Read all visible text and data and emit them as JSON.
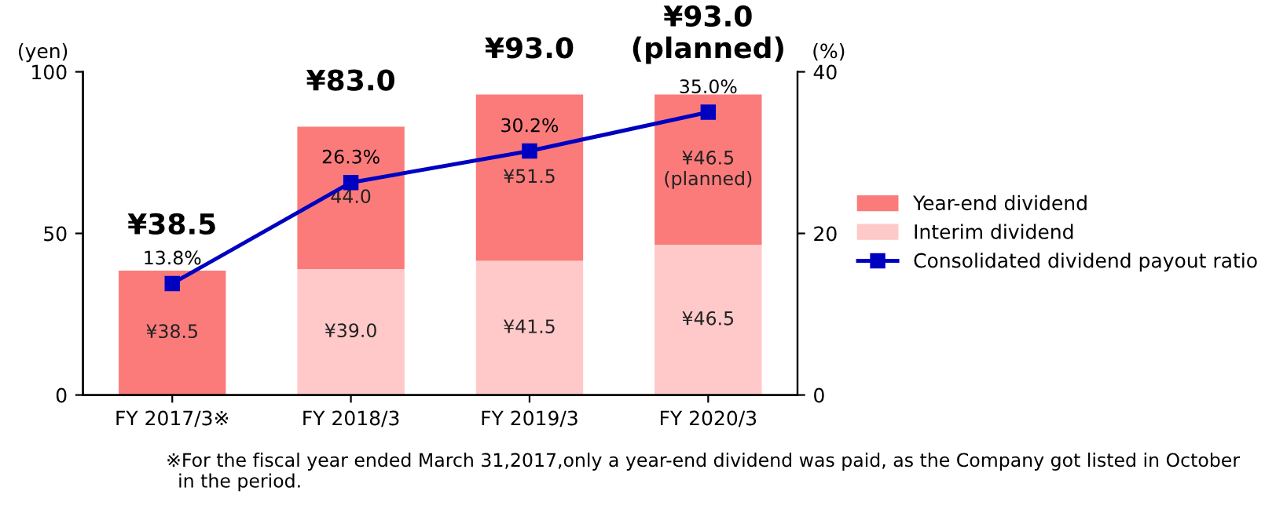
{
  "chart_data": {
    "type": "bar",
    "stacked": true,
    "categories": [
      "FY 2017/3※",
      "FY 2018/3",
      "FY 2019/3",
      "FY 2020/3"
    ],
    "ylabel": "(yen)",
    "y2label": "(%)",
    "ylim": [
      0,
      100
    ],
    "yticks": [
      0,
      50,
      100
    ],
    "y2lim": [
      0,
      40
    ],
    "y2ticks": [
      0,
      20,
      40
    ],
    "series": [
      {
        "name": "Interim dividend",
        "color": "#ffc9c9",
        "values": [
          null,
          39.0,
          41.5,
          46.5
        ],
        "value_labels": [
          null,
          "¥39.0",
          "¥41.5",
          "¥46.5"
        ]
      },
      {
        "name": "Year-end dividend",
        "color": "#fb7b7b",
        "values": [
          38.5,
          44.0,
          51.5,
          46.5
        ],
        "value_labels": [
          "¥38.5",
          "44.0",
          "¥51.5",
          "¥46.5\n(planned)"
        ]
      },
      {
        "name": "Consolidated dividend payout ratio",
        "type": "line",
        "axis": "y2",
        "color": "#0000c0",
        "marker": "square",
        "values": [
          13.8,
          26.3,
          30.2,
          35.0
        ],
        "value_labels": [
          "13.8%",
          "26.3%",
          "30.2%",
          "35.0%"
        ]
      }
    ],
    "totals": [
      "¥38.5",
      "¥83.0",
      "¥93.0",
      "¥93.0\n(planned)"
    ],
    "legend": "right",
    "grid": false,
    "annotations": [
      "※For the fiscal year ended March 31,2017,only a year-end dividend was paid, as the Company got listed in October\n  in the period."
    ]
  }
}
